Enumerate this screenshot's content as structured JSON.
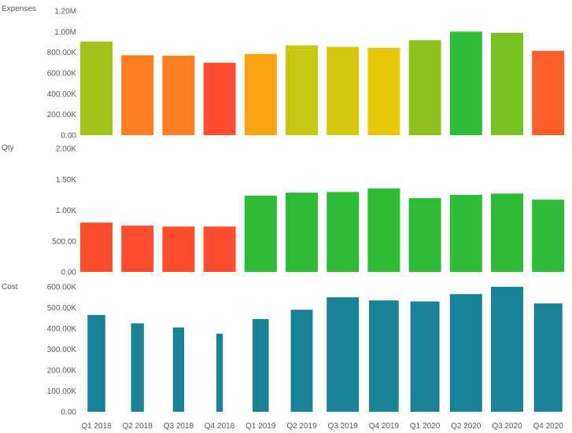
{
  "chart_data": [
    {
      "type": "bar",
      "title": "Expenses",
      "categories": [
        "Q1 2018",
        "Q2 2018",
        "Q3 2018",
        "Q4 2018",
        "Q1 2019",
        "Q2 2019",
        "Q3 2019",
        "Q4 2019",
        "Q1 2020",
        "Q2 2020",
        "Q3 2020",
        "Q4 2020"
      ],
      "values": [
        905000,
        772000,
        768000,
        700000,
        785000,
        868000,
        853000,
        843000,
        918000,
        1000000,
        990000,
        815000
      ],
      "colors": [
        "#a4c31a",
        "#fd7f22",
        "#fd7f22",
        "#fd4c2e",
        "#fba514",
        "#c8c914",
        "#d6c80f",
        "#e6c807",
        "#8fc11e",
        "#2ebb37",
        "#79c021",
        "#fe5f2a"
      ],
      "yticks": [
        0,
        200000,
        400000,
        600000,
        800000,
        1000000,
        1200000
      ],
      "yticklabels": [
        "0.00",
        "200.00K",
        "400.00K",
        "600.00K",
        "800.00K",
        "1.00M",
        "1.20M"
      ],
      "ylim": [
        0,
        1200000
      ]
    },
    {
      "type": "bar",
      "title": "Qty",
      "categories": [
        "Q1 2018",
        "Q2 2018",
        "Q3 2018",
        "Q4 2018",
        "Q1 2019",
        "Q2 2019",
        "Q3 2019",
        "Q4 2019",
        "Q1 2020",
        "Q2 2020",
        "Q3 2020",
        "Q4 2020"
      ],
      "values": [
        800,
        750,
        735,
        735,
        1235,
        1285,
        1295,
        1355,
        1195,
        1250,
        1270,
        1170
      ],
      "colors": [
        "#fd4c2e",
        "#fd4c2e",
        "#fd4c2e",
        "#fd4c2e",
        "#2ebb37",
        "#2ebb37",
        "#2ebb37",
        "#2ebb37",
        "#2ebb37",
        "#2ebb37",
        "#2ebb37",
        "#2ebb37"
      ],
      "yticks": [
        0,
        500,
        1000,
        1500,
        2000
      ],
      "yticklabels": [
        "0.00",
        "500.00",
        "1.00K",
        "1.50K",
        "2.00K"
      ],
      "ylim": [
        0,
        2000
      ]
    },
    {
      "type": "bar",
      "title": "Cost",
      "categories": [
        "Q1 2018",
        "Q2 2018",
        "Q3 2018",
        "Q4 2018",
        "Q1 2019",
        "Q2 2019",
        "Q3 2019",
        "Q4 2019",
        "Q1 2020",
        "Q2 2020",
        "Q3 2020",
        "Q4 2020"
      ],
      "values": [
        465000,
        425000,
        405000,
        375000,
        445000,
        490000,
        550000,
        535000,
        530000,
        565000,
        600000,
        520000
      ],
      "bar_width_fraction": [
        0.55,
        0.4,
        0.35,
        0.2,
        0.5,
        0.68,
        1.0,
        0.92,
        0.9,
        1.0,
        1.0,
        0.88
      ],
      "colors": [
        "#1a8296",
        "#1a8296",
        "#1a8296",
        "#1a8296",
        "#1a8296",
        "#1a8296",
        "#1a8296",
        "#1a8296",
        "#1a8296",
        "#1a8296",
        "#1a8296",
        "#1a8296"
      ],
      "yticks": [
        0,
        100000,
        200000,
        300000,
        400000,
        500000,
        600000
      ],
      "yticklabels": [
        "0.00",
        "100.00K",
        "200.00K",
        "300.00K",
        "400.00K",
        "500.00K",
        "600.00K"
      ],
      "ylim": [
        0,
        600000
      ]
    }
  ]
}
